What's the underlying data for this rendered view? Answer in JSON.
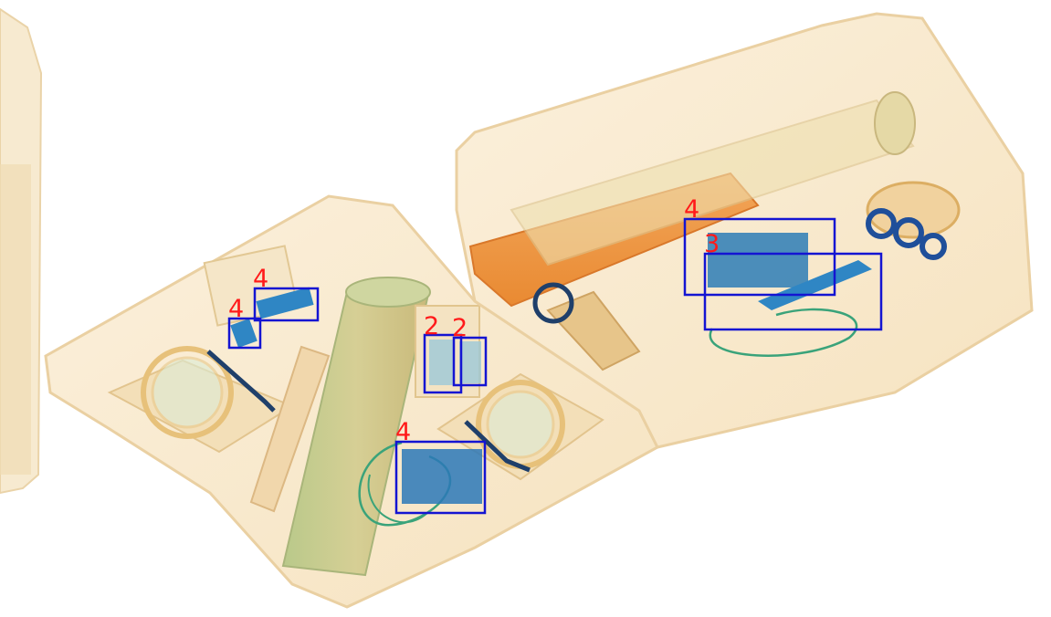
{
  "image": {
    "kind": "x-ray baggage scan",
    "colors": {
      "background": "#ffffff",
      "organic": "#f0c88c",
      "organic_dense": "#e88a2e",
      "metal_inorganic": "#1f6fb8",
      "mixed": "#3aa37a",
      "box_stroke": "#1414d2",
      "label_text": "#ff1a1a"
    }
  },
  "detections": [
    {
      "label": "4"
    },
    {
      "label": "4"
    },
    {
      "label": "2"
    },
    {
      "label": "2"
    },
    {
      "label": "4"
    },
    {
      "label": "4"
    },
    {
      "label": "3"
    }
  ]
}
